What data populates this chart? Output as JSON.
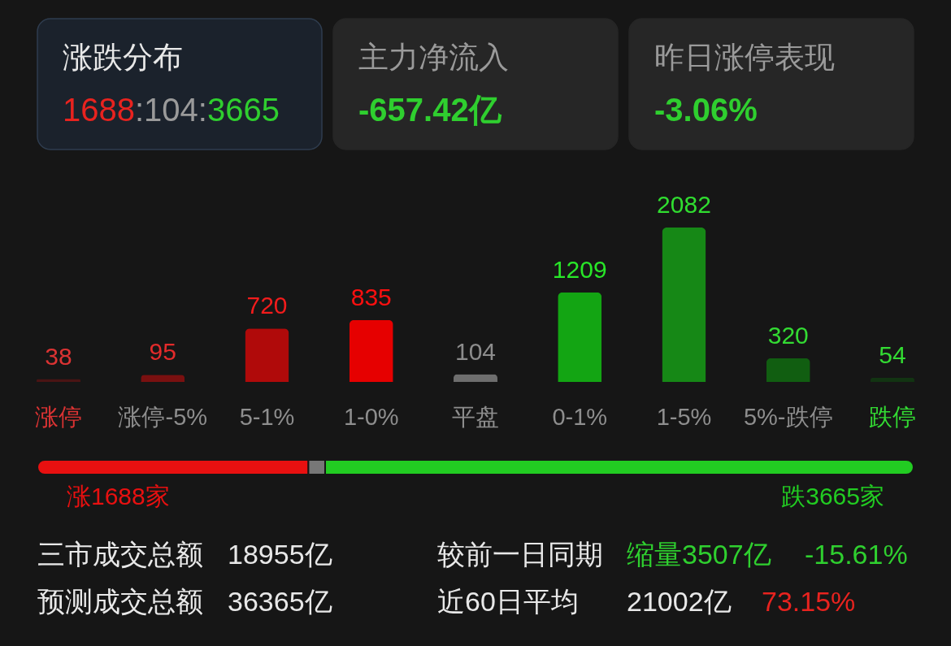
{
  "chart_data": [
    {
      "type": "other",
      "annotations": [
        "涨跌分布",
        "1688",
        ":104:",
        "3665",
        "主力净流入",
        "-657.42亿",
        "昨日涨停表现",
        "-3.06%"
      ]
    },
    {
      "type": "bar",
      "categories": [
        "涨停",
        "涨停-5%",
        "5-1%",
        "1-0%",
        "平盘",
        "0-1%",
        "1-5%",
        "5%-跌停",
        "跌停"
      ],
      "values": [
        38,
        95,
        720,
        835,
        104,
        1209,
        2082,
        320,
        54
      ],
      "colors": [
        "#4a1414",
        "#7a1010",
        "#b00a0a",
        "#e60000",
        "#6e6e6e",
        "#13a513",
        "#168816",
        "#115e11",
        "#123412"
      ],
      "data_labels": true
    },
    {
      "type": "bar",
      "orientation": "horizontal",
      "stacked": true,
      "categories": [
        null
      ],
      "series": [
        {
          "color": "#e81010",
          "values": [
            1688
          ],
          "value_labels": [
            "涨1688家"
          ]
        },
        {
          "color": "#777777",
          "values": [
            104
          ],
          "value_labels": [
            null
          ]
        },
        {
          "color": "#22cc22",
          "values": [
            3665
          ],
          "value_labels": [
            "跌3665家"
          ]
        }
      ]
    },
    {
      "type": "other",
      "annotations": [
        "三市成交总额",
        "18955亿",
        "较前一日同期",
        "缩量3507亿",
        "-15.61%",
        "预测成交总额",
        "36365亿",
        "近60日平均",
        "21002亿",
        "73.15%"
      ]
    }
  ]
}
